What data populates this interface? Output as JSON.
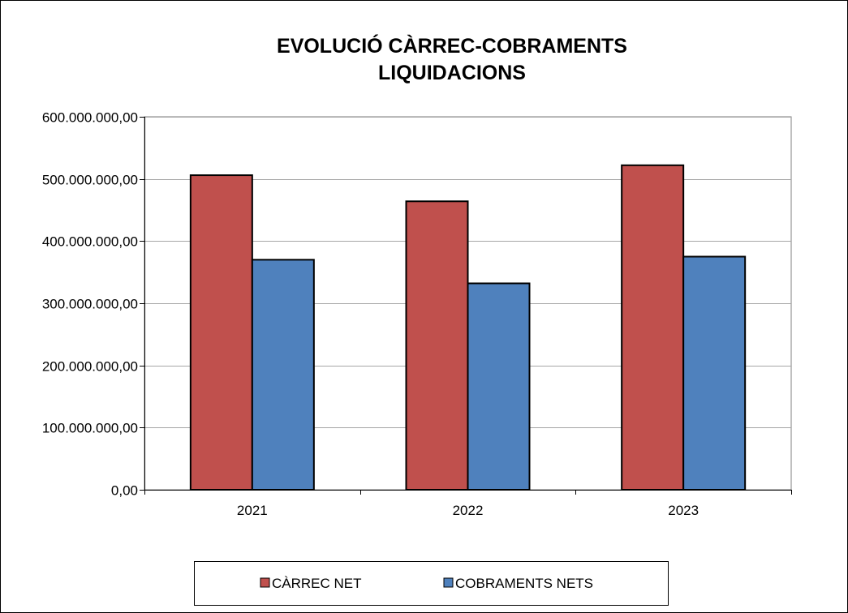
{
  "chart_data": {
    "type": "bar",
    "title": [
      "EVOLUCIÓ CÀRREC-COBRAMENTS",
      "LIQUIDACIONS"
    ],
    "categories": [
      "2021",
      "2022",
      "2023"
    ],
    "series": [
      {
        "name": "CÀRREC NET",
        "values": [
          506000000,
          464000000,
          522000000
        ],
        "color": "#c0504d"
      },
      {
        "name": "COBRAMENTS NETS",
        "values": [
          370000000,
          332000000,
          375000000
        ],
        "color": "#4f81bd"
      }
    ],
    "ylim": [
      0,
      600000000
    ],
    "y_ticks": [
      0,
      100000000,
      200000000,
      300000000,
      400000000,
      500000000,
      600000000
    ],
    "y_tick_labels": [
      "0,00",
      "100.000.000,00",
      "200.000.000,00",
      "300.000.000,00",
      "400.000.000,00",
      "500.000.000,00",
      "600.000.000,00"
    ],
    "xlabel": "",
    "ylabel": "",
    "grid": true,
    "legend_position": "bottom"
  }
}
